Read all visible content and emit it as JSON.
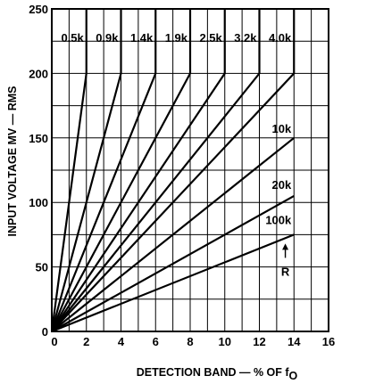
{
  "chart_data": {
    "type": "line",
    "xlabel": "DETECTION BAND — % OF f",
    "xlabel_sub": "O",
    "ylabel": "INPUT VOLTAGE MV — RMS",
    "xlim": [
      0,
      16
    ],
    "ylim": [
      0,
      250
    ],
    "x_ticks": [
      0,
      2,
      4,
      6,
      8,
      10,
      12,
      14,
      16
    ],
    "y_ticks": [
      0,
      50,
      100,
      150,
      200,
      250
    ],
    "grid": true,
    "annotation": {
      "text": "R",
      "arrow_to": [
        13.5,
        75
      ]
    },
    "series": [
      {
        "name": "0.5k",
        "points": [
          [
            0,
            0
          ],
          [
            2,
            200
          ],
          [
            2,
            250
          ]
        ]
      },
      {
        "name": "0.9k",
        "points": [
          [
            0,
            0
          ],
          [
            4,
            200
          ],
          [
            4,
            250
          ]
        ]
      },
      {
        "name": "1.4k",
        "points": [
          [
            0,
            0
          ],
          [
            6,
            200
          ],
          [
            6,
            250
          ]
        ]
      },
      {
        "name": "1.9k",
        "points": [
          [
            0,
            0
          ],
          [
            8,
            200
          ],
          [
            8,
            250
          ]
        ]
      },
      {
        "name": "2.5k",
        "points": [
          [
            0,
            0
          ],
          [
            10,
            200
          ],
          [
            10,
            250
          ]
        ]
      },
      {
        "name": "3.2k",
        "points": [
          [
            0,
            0
          ],
          [
            12,
            200
          ],
          [
            12,
            250
          ]
        ]
      },
      {
        "name": "4.0k",
        "points": [
          [
            0,
            0
          ],
          [
            14,
            200
          ],
          [
            14,
            250
          ]
        ]
      },
      {
        "name": "10k",
        "points": [
          [
            0,
            0
          ],
          [
            14,
            150
          ]
        ]
      },
      {
        "name": "20k",
        "points": [
          [
            0,
            0
          ],
          [
            14,
            105
          ]
        ]
      },
      {
        "name": "100k",
        "points": [
          [
            0,
            0
          ],
          [
            14,
            75
          ]
        ]
      }
    ]
  }
}
